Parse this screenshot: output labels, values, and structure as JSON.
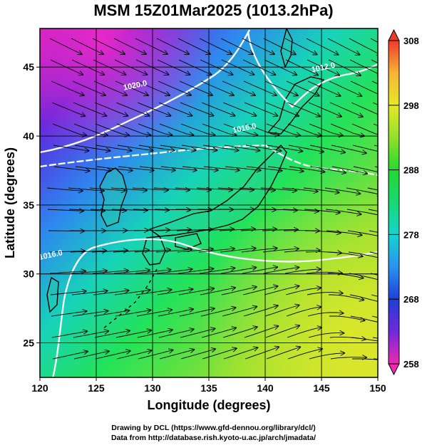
{
  "title": "MSM 15Z01Mar2025 (1013.2hPa)",
  "map": {
    "xlabel": "Longitude (degrees)",
    "ylabel": "Latitude  (degrees)",
    "x_range": [
      120,
      150
    ],
    "y_range": [
      22.5,
      47.8
    ],
    "x_ticks": [
      "120",
      "125",
      "130",
      "135",
      "140",
      "145",
      "150"
    ],
    "y_ticks": [
      "25",
      "30",
      "35",
      "40",
      "45"
    ],
    "isobar_labels": [
      {
        "text": "1020.0",
        "lon": 128.5,
        "lat": 43.5
      },
      {
        "text": "1012.0",
        "lon": 145.2,
        "lat": 44.8
      },
      {
        "text": "1016.0",
        "lon": 138.2,
        "lat": 40.4
      },
      {
        "text": "1016.0",
        "lon": 121.0,
        "lat": 31.2
      }
    ]
  },
  "colorbar": {
    "min": 258,
    "max": 308,
    "tick_labels": [
      "308",
      "298",
      "288",
      "278",
      "268",
      "258"
    ]
  },
  "credits": {
    "line1": "Drawing by DCL (https://www.gfd-dennou.org/library/dcl/)",
    "line2": "Data from http://database.rish.kyoto-u.ac.jp/arch/jmadata/"
  }
}
